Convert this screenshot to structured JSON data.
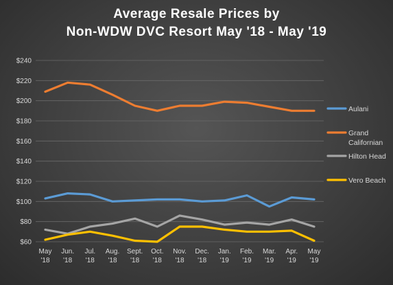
{
  "chart_data": {
    "type": "line",
    "title_lines": [
      "Average Resale Prices by",
      "Non-WDW  DVC Resort May '18 - May '19"
    ],
    "categories": [
      [
        "May",
        "'18"
      ],
      [
        "Jun.",
        "'18"
      ],
      [
        "Jul.",
        "'18"
      ],
      [
        "Aug.",
        "'18"
      ],
      [
        "Sept.",
        "'18"
      ],
      [
        "Oct.",
        "'18"
      ],
      [
        "Nov.",
        "'18"
      ],
      [
        "Dec.",
        "'18"
      ],
      [
        "Jan.",
        "'19"
      ],
      [
        "Feb.",
        "'19"
      ],
      [
        "Mar.",
        "'19"
      ],
      [
        "Apr.",
        "'19"
      ],
      [
        "May",
        "'19"
      ]
    ],
    "y_ticks": [
      "$60",
      "$80",
      "$100",
      "$120",
      "$140",
      "$160",
      "$180",
      "$200",
      "$220",
      "$240"
    ],
    "ylim": [
      60,
      240
    ],
    "y_step": 20,
    "grid": true,
    "legend_position": "right",
    "series": [
      {
        "name": "Aulani",
        "color": "#5b9bd5",
        "values": [
          103,
          108,
          107,
          100,
          101,
          102,
          102,
          100,
          101,
          106,
          95,
          104,
          102
        ]
      },
      {
        "name": "Grand Californian",
        "color": "#ed7d31",
        "values": [
          209,
          218,
          216,
          206,
          195,
          190,
          195,
          195,
          199,
          198,
          194,
          190,
          190
        ]
      },
      {
        "name": "Hilton Head",
        "color": "#a5a5a5",
        "values": [
          72,
          68,
          75,
          78,
          83,
          75,
          86,
          82,
          77,
          79,
          77,
          82,
          75
        ]
      },
      {
        "name": "Vero Beach",
        "color": "#ffc000",
        "values": [
          62,
          67,
          70,
          66,
          61,
          60,
          75,
          75,
          72,
          70,
          70,
          71,
          61
        ]
      }
    ]
  }
}
